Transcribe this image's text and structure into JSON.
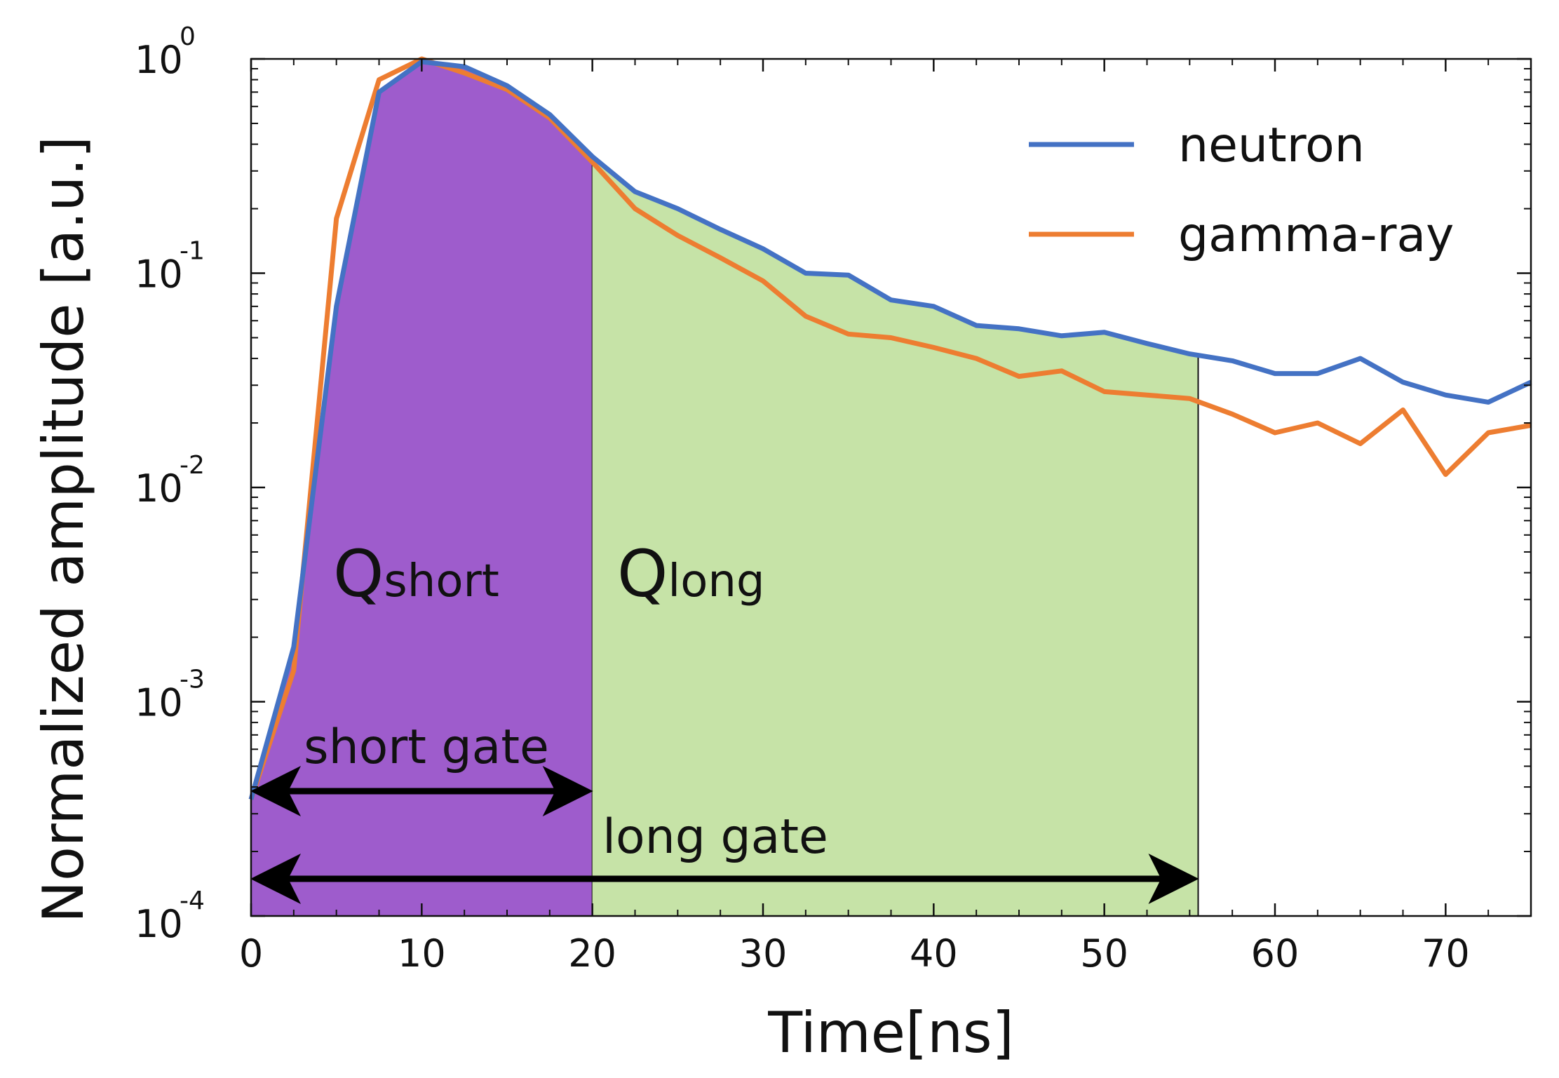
{
  "chart_data": {
    "type": "line",
    "title": "",
    "xlabel": "Time[ns]",
    "ylabel": "Normalized amplitude [a.u.]",
    "xlim": [
      0,
      75
    ],
    "ylim": [
      0.0001,
      1
    ],
    "yscale": "log",
    "x_ticks": [
      0,
      10,
      20,
      30,
      40,
      50,
      60,
      70
    ],
    "x_tick_labels": [
      "0",
      "10",
      "20",
      "30",
      "40",
      "50",
      "60",
      "70"
    ],
    "y_ticks": [
      0.0001,
      0.001,
      0.01,
      0.1,
      1
    ],
    "y_tick_labels": [
      {
        "base": "10",
        "exp": "-4"
      },
      {
        "base": "10",
        "exp": "-3"
      },
      {
        "base": "10",
        "exp": "-2"
      },
      {
        "base": "10",
        "exp": "-1"
      },
      {
        "base": "10",
        "exp": "0"
      }
    ],
    "grid": false,
    "legend_position": "top-right",
    "series": [
      {
        "name": "neutron",
        "color": "#4472C4",
        "x": [
          0,
          2.5,
          5,
          7.5,
          10,
          12.5,
          15,
          17.5,
          20,
          22.5,
          25,
          27.5,
          30,
          32.5,
          35,
          37.5,
          40,
          42.5,
          45,
          47.5,
          50,
          52.5,
          55,
          57.5,
          60,
          62.5,
          65,
          67.5,
          70,
          72.5,
          75
        ],
        "values": [
          0.00035,
          0.0018,
          0.07,
          0.7,
          0.97,
          0.92,
          0.75,
          0.55,
          0.35,
          0.24,
          0.2,
          0.16,
          0.13,
          0.1,
          0.098,
          0.075,
          0.07,
          0.057,
          0.055,
          0.051,
          0.053,
          0.047,
          0.042,
          0.039,
          0.034,
          0.034,
          0.04,
          0.031,
          0.027,
          0.025,
          0.031
        ]
      },
      {
        "name": "gamma-ray",
        "color": "#ED7D31",
        "x": [
          0,
          2.5,
          5,
          7.5,
          10,
          12.5,
          15,
          17.5,
          20,
          22.5,
          25,
          27.5,
          30,
          32.5,
          35,
          37.5,
          40,
          42.5,
          45,
          47.5,
          50,
          52.5,
          55,
          57.5,
          60,
          62.5,
          65,
          67.5,
          70,
          72.5,
          75
        ],
        "values": [
          0.00035,
          0.0014,
          0.18,
          0.8,
          1.0,
          0.86,
          0.72,
          0.53,
          0.33,
          0.2,
          0.15,
          0.118,
          0.092,
          0.063,
          0.052,
          0.05,
          0.045,
          0.04,
          0.033,
          0.035,
          0.028,
          0.027,
          0.026,
          0.022,
          0.018,
          0.02,
          0.016,
          0.023,
          0.0115,
          0.018,
          0.0195
        ]
      }
    ],
    "regions": [
      {
        "name": "Q",
        "sub": "short",
        "x_start": 0,
        "x_end": 20,
        "color": "#9E5CCC"
      },
      {
        "name": "Q",
        "sub": "long",
        "x_start": 20,
        "x_end": 55.5,
        "color": "#C6E3A7"
      }
    ],
    "gates": [
      {
        "label": "short gate",
        "x_start": 0,
        "x_end": 20
      },
      {
        "label": "long gate",
        "x_start": 0,
        "x_end": 55.5
      }
    ]
  }
}
